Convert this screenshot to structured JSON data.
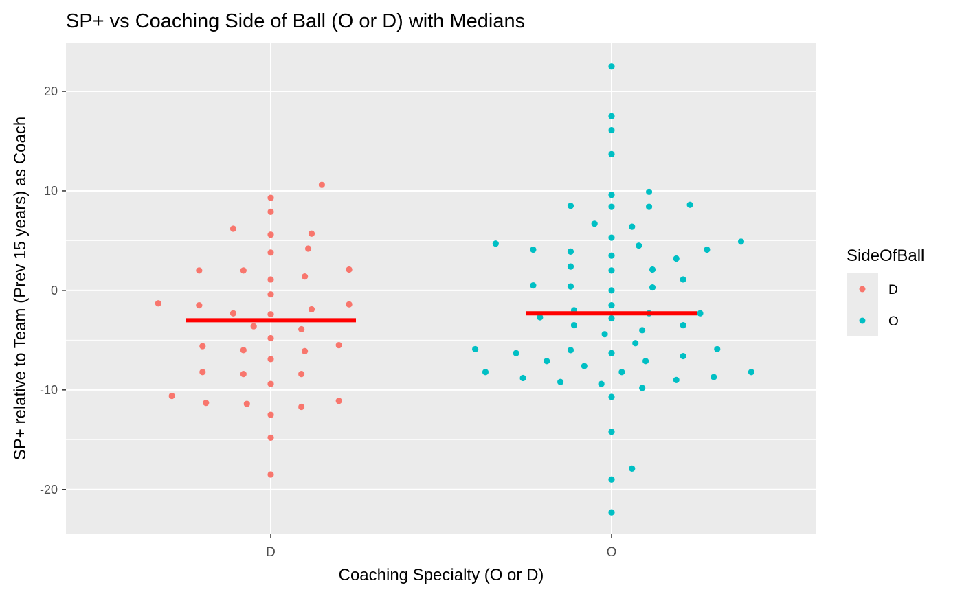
{
  "chart_data": {
    "type": "scatter",
    "title": "SP+ vs Coaching Side of Ball (O or D) with Medians",
    "xlabel": "Coaching Specialty (O or D)",
    "ylabel": "SP+ relative to Team (Prev 15 years) as Coach",
    "categories": [
      "D",
      "O"
    ],
    "ylim": [
      -24.5,
      24.9
    ],
    "yticks": [
      -20,
      -10,
      0,
      10,
      20
    ],
    "legend": {
      "title": "SideOfBall",
      "position": "right",
      "entries": [
        {
          "label": "D",
          "color": "#F8766D"
        },
        {
          "label": "O",
          "color": "#00BFC4"
        }
      ]
    },
    "median_color": "#FF0000",
    "series": [
      {
        "name": "D",
        "color": "#F8766D",
        "median": -3.0,
        "points": [
          {
            "offset": 0.15,
            "y": 10.6
          },
          {
            "offset": 0.0,
            "y": 9.3
          },
          {
            "offset": 0.0,
            "y": 7.9
          },
          {
            "offset": -0.11,
            "y": 6.2
          },
          {
            "offset": 0.0,
            "y": 5.6
          },
          {
            "offset": 0.12,
            "y": 5.7
          },
          {
            "offset": 0.11,
            "y": 4.2
          },
          {
            "offset": 0.0,
            "y": 3.8
          },
          {
            "offset": -0.21,
            "y": 2.0
          },
          {
            "offset": -0.08,
            "y": 2.0
          },
          {
            "offset": 0.23,
            "y": 2.1
          },
          {
            "offset": 0.0,
            "y": 1.1
          },
          {
            "offset": 0.1,
            "y": 1.4
          },
          {
            "offset": 0.0,
            "y": -0.4
          },
          {
            "offset": -0.33,
            "y": -1.3
          },
          {
            "offset": -0.21,
            "y": -1.5
          },
          {
            "offset": 0.23,
            "y": -1.4
          },
          {
            "offset": 0.12,
            "y": -1.9
          },
          {
            "offset": -0.11,
            "y": -2.3
          },
          {
            "offset": 0.0,
            "y": -2.4
          },
          {
            "offset": -0.05,
            "y": -3.6
          },
          {
            "offset": 0.09,
            "y": -3.9
          },
          {
            "offset": 0.0,
            "y": -4.8
          },
          {
            "offset": -0.2,
            "y": -5.6
          },
          {
            "offset": 0.2,
            "y": -5.5
          },
          {
            "offset": -0.08,
            "y": -6.0
          },
          {
            "offset": 0.1,
            "y": -6.1
          },
          {
            "offset": 0.0,
            "y": -6.9
          },
          {
            "offset": -0.2,
            "y": -8.2
          },
          {
            "offset": -0.08,
            "y": -8.4
          },
          {
            "offset": 0.09,
            "y": -8.4
          },
          {
            "offset": 0.0,
            "y": -9.4
          },
          {
            "offset": -0.29,
            "y": -10.6
          },
          {
            "offset": -0.19,
            "y": -11.3
          },
          {
            "offset": -0.07,
            "y": -11.4
          },
          {
            "offset": 0.2,
            "y": -11.1
          },
          {
            "offset": 0.09,
            "y": -11.7
          },
          {
            "offset": 0.0,
            "y": -12.5
          },
          {
            "offset": 0.0,
            "y": -14.8
          },
          {
            "offset": 0.0,
            "y": -18.5
          }
        ]
      },
      {
        "name": "O",
        "color": "#00BFC4",
        "median": -2.3,
        "points": [
          {
            "offset": 0.0,
            "y": 22.5
          },
          {
            "offset": 0.0,
            "y": 17.5
          },
          {
            "offset": 0.0,
            "y": 16.1
          },
          {
            "offset": 0.0,
            "y": 13.7
          },
          {
            "offset": 0.11,
            "y": 9.9
          },
          {
            "offset": 0.0,
            "y": 9.6
          },
          {
            "offset": -0.12,
            "y": 8.5
          },
          {
            "offset": 0.0,
            "y": 8.4
          },
          {
            "offset": 0.11,
            "y": 8.4
          },
          {
            "offset": 0.23,
            "y": 8.6
          },
          {
            "offset": -0.05,
            "y": 6.7
          },
          {
            "offset": 0.06,
            "y": 6.4
          },
          {
            "offset": 0.0,
            "y": 5.3
          },
          {
            "offset": -0.34,
            "y": 4.7
          },
          {
            "offset": -0.23,
            "y": 4.1
          },
          {
            "offset": 0.08,
            "y": 4.5
          },
          {
            "offset": 0.28,
            "y": 4.1
          },
          {
            "offset": 0.38,
            "y": 4.9
          },
          {
            "offset": -0.12,
            "y": 3.9
          },
          {
            "offset": 0.0,
            "y": 3.5
          },
          {
            "offset": 0.19,
            "y": 3.2
          },
          {
            "offset": -0.12,
            "y": 2.4
          },
          {
            "offset": 0.0,
            "y": 2.0
          },
          {
            "offset": 0.12,
            "y": 2.1
          },
          {
            "offset": 0.21,
            "y": 1.1
          },
          {
            "offset": -0.23,
            "y": 0.5
          },
          {
            "offset": -0.12,
            "y": 0.4
          },
          {
            "offset": 0.0,
            "y": 0.0
          },
          {
            "offset": 0.12,
            "y": 0.3
          },
          {
            "offset": 0.0,
            "y": -1.5
          },
          {
            "offset": -0.11,
            "y": -2.0
          },
          {
            "offset": -0.21,
            "y": -2.7
          },
          {
            "offset": 0.0,
            "y": -2.8
          },
          {
            "offset": 0.11,
            "y": -2.3
          },
          {
            "offset": 0.26,
            "y": -2.3
          },
          {
            "offset": -0.11,
            "y": -3.5
          },
          {
            "offset": 0.09,
            "y": -4.0
          },
          {
            "offset": 0.21,
            "y": -3.5
          },
          {
            "offset": -0.02,
            "y": -4.4
          },
          {
            "offset": 0.07,
            "y": -5.3
          },
          {
            "offset": -0.4,
            "y": -5.9
          },
          {
            "offset": -0.28,
            "y": -6.3
          },
          {
            "offset": -0.12,
            "y": -6.0
          },
          {
            "offset": 0.0,
            "y": -6.3
          },
          {
            "offset": 0.21,
            "y": -6.6
          },
          {
            "offset": 0.31,
            "y": -5.9
          },
          {
            "offset": -0.19,
            "y": -7.1
          },
          {
            "offset": -0.08,
            "y": -7.6
          },
          {
            "offset": 0.1,
            "y": -7.1
          },
          {
            "offset": -0.37,
            "y": -8.2
          },
          {
            "offset": -0.26,
            "y": -8.8
          },
          {
            "offset": -0.15,
            "y": -9.2
          },
          {
            "offset": -0.03,
            "y": -9.4
          },
          {
            "offset": 0.03,
            "y": -8.2
          },
          {
            "offset": 0.09,
            "y": -9.8
          },
          {
            "offset": 0.19,
            "y": -9.0
          },
          {
            "offset": 0.3,
            "y": -8.7
          },
          {
            "offset": 0.41,
            "y": -8.2
          },
          {
            "offset": 0.0,
            "y": -10.7
          },
          {
            "offset": 0.0,
            "y": -14.2
          },
          {
            "offset": 0.06,
            "y": -17.9
          },
          {
            "offset": 0.0,
            "y": -19.0
          },
          {
            "offset": 0.0,
            "y": -22.3
          }
        ]
      }
    ]
  }
}
